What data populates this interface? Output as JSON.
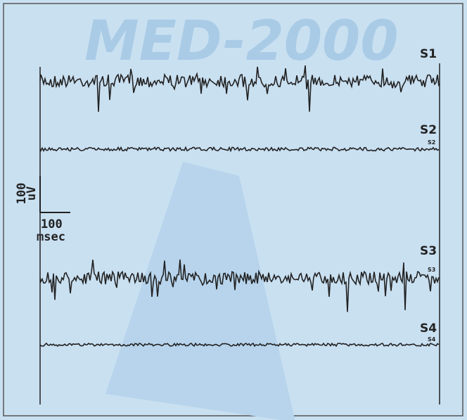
{
  "background": {
    "title": "MED-2000"
  },
  "traces": [
    {
      "label": "S1"
    },
    {
      "label": "S2",
      "end_label": "S2"
    },
    {
      "label": "S3",
      "end_label": "S3"
    },
    {
      "label": "S4",
      "end_label": "S4"
    }
  ],
  "scale_bar": {
    "vertical": {
      "value": "100",
      "unit": "uV"
    },
    "horizontal": {
      "value": "100",
      "unit": "msec"
    }
  }
}
